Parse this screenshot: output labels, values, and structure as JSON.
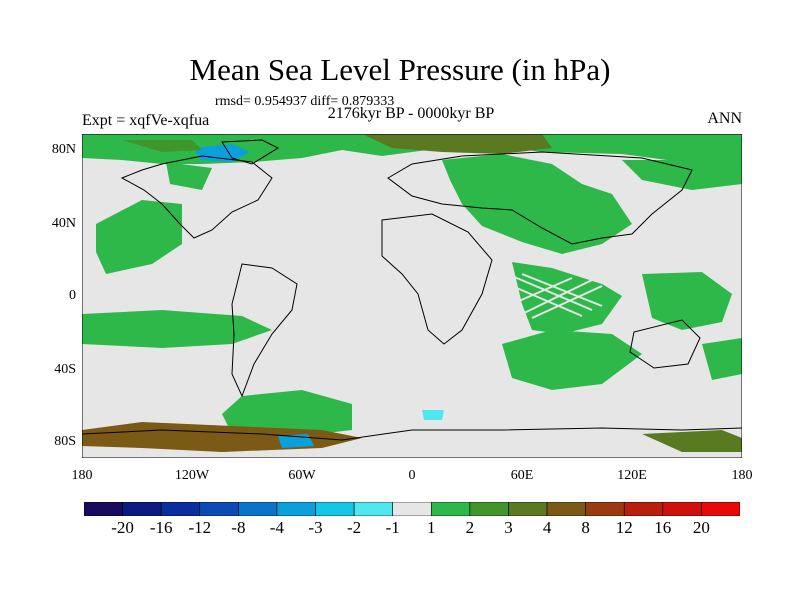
{
  "header": {
    "title": "Mean Sea Level Pressure (in hPa)",
    "stats": "rmsd= 0.954937 diff= 0.879333",
    "experiment": "Expt = xqfVe-xqfua",
    "period": "2176kyr BP - 0000kyr BP",
    "season": "ANN"
  },
  "chart_data": {
    "type": "heatmap",
    "title": "Mean Sea Level Pressure (in hPa)",
    "x_ticks": [
      "180",
      "120W",
      "60W",
      "0",
      "60E",
      "120E",
      "180"
    ],
    "y_ticks": [
      "80N",
      "40N",
      "0",
      "40S",
      "80S"
    ],
    "xlim": [
      -180,
      180
    ],
    "ylim": [
      -90,
      90
    ],
    "colorbar_labels": [
      "-20",
      "-16",
      "-12",
      "-8",
      "-4",
      "-3",
      "-2",
      "-1",
      "1",
      "2",
      "3",
      "4",
      "8",
      "12",
      "16",
      "20"
    ],
    "colorbar_colors": [
      "#1a0a5e",
      "#0c1a82",
      "#0a2e9e",
      "#0b4cb4",
      "#0a74c8",
      "#0ba0dc",
      "#16c6e6",
      "#4fe6ee",
      "#e6e6e6",
      "#2fb84a",
      "#40962a",
      "#5a7a22",
      "#7a5a14",
      "#9a3a10",
      "#b8200c",
      "#d0100a",
      "#e80a0a"
    ],
    "background_color": "#e6e6e6",
    "land_outline_color": "#000000"
  }
}
